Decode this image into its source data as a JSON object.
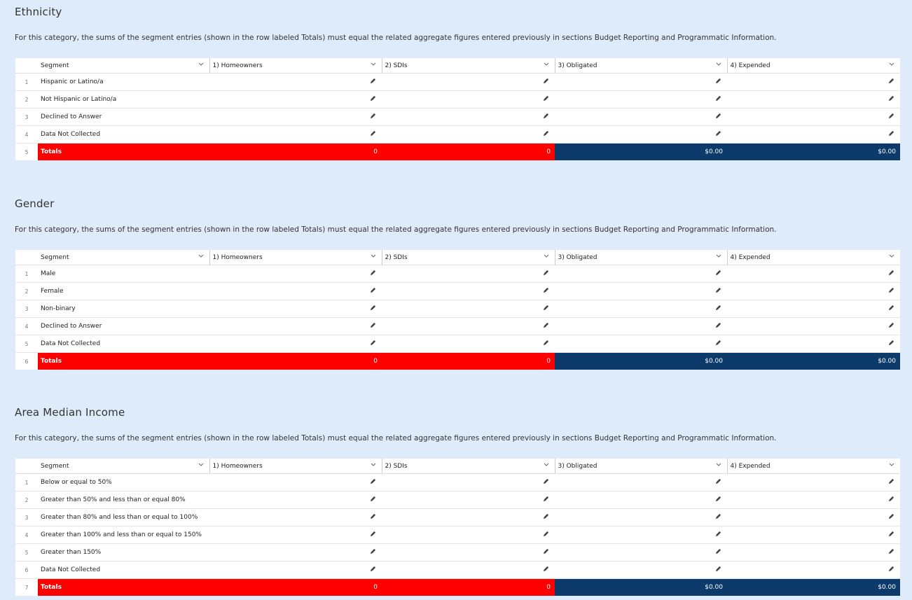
{
  "sections": [
    {
      "title": "Ethnicity",
      "description": "For this category, the sums of the segment entries (shown in the row labeled Totals) must equal the related aggregate figures entered previously in sections Budget Reporting and Programmatic Information.",
      "columns": [
        "Segment",
        "1) Homeowners",
        "2) SDIs",
        "3) Obligated",
        "4) Expended"
      ],
      "rows": [
        {
          "number": 1,
          "label": "Hispanic or Latino/a"
        },
        {
          "number": 2,
          "label": "Not Hispanic or Latino/a"
        },
        {
          "number": 3,
          "label": "Declined to Answer"
        },
        {
          "number": 4,
          "label": "Data Not Collected"
        }
      ],
      "totals": {
        "number": 5,
        "label": "Totals",
        "values": [
          "0",
          "0",
          "$0.00",
          "$0.00"
        ]
      }
    },
    {
      "title": "Gender",
      "description": "For this category, the sums of the segment entries (shown in the row labeled Totals) must equal the related aggregate figures entered previously in sections Budget Reporting and Programmatic Information.",
      "columns": [
        "Segment",
        "1) Homeowners",
        "2) SDIs",
        "3) Obligated",
        "4) Expended"
      ],
      "rows": [
        {
          "number": 1,
          "label": "Male"
        },
        {
          "number": 2,
          "label": "Female"
        },
        {
          "number": 3,
          "label": "Non-binary"
        },
        {
          "number": 4,
          "label": "Declined to Answer"
        },
        {
          "number": 5,
          "label": "Data Not Collected"
        }
      ],
      "totals": {
        "number": 6,
        "label": "Totals",
        "values": [
          "0",
          "0",
          "$0.00",
          "$0.00"
        ]
      }
    },
    {
      "title": "Area Median Income",
      "description": "For this category, the sums of the segment entries (shown in the row labeled Totals) must equal the related aggregate figures entered previously in sections Budget Reporting and Programmatic Information.",
      "columns": [
        "Segment",
        "1) Homeowners",
        "2) SDIs",
        "3) Obligated",
        "4) Expended"
      ],
      "rows": [
        {
          "number": 1,
          "label": "Below or equal to 50%"
        },
        {
          "number": 2,
          "label": "Greater than 50% and less than or equal 80%"
        },
        {
          "number": 3,
          "label": "Greater than 80% and less than or equal to 100%"
        },
        {
          "number": 4,
          "label": "Greater than 100% and less than or equal to 150%"
        },
        {
          "number": 5,
          "label": "Greater than 150%"
        },
        {
          "number": 6,
          "label": "Data Not Collected"
        }
      ],
      "totals": {
        "number": 7,
        "label": "Totals",
        "values": [
          "0",
          "0",
          "$0.00",
          "$0.00"
        ]
      }
    }
  ]
}
